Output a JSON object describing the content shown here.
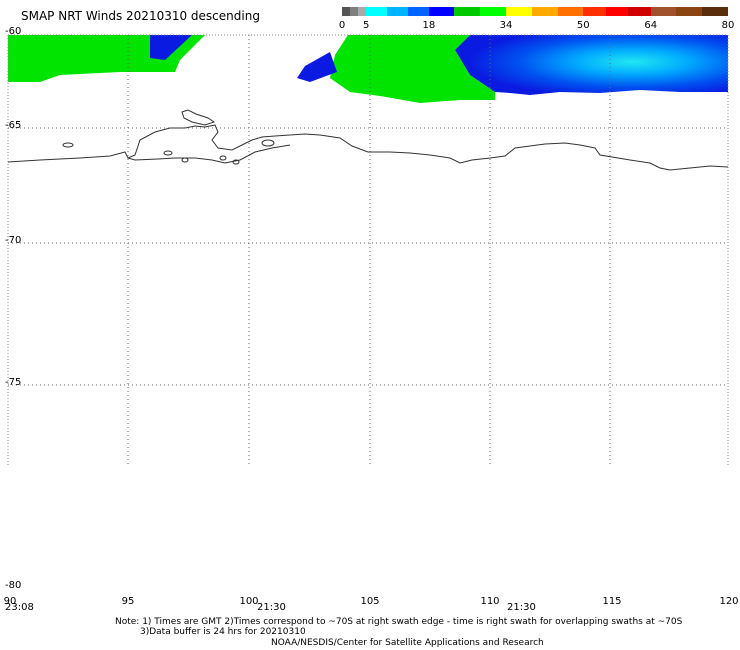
{
  "title": "SMAP NRT Winds  20210310 descending",
  "colorbar": {
    "labels": [
      "0",
      "5",
      "18",
      "34",
      "50",
      "64",
      "80"
    ],
    "colors": [
      "#555555",
      "#7f7f7f",
      "#aaaaaa",
      "#00ffff",
      "#00b4ff",
      "#0064ff",
      "#0000ff",
      "#00c800",
      "#00ff00",
      "#ffff00",
      "#ffaa00",
      "#ff7000",
      "#ff3000",
      "#ff0000",
      "#d00000",
      "#a0522d",
      "#8b4513",
      "#5a2d0c",
      "#ff00ff",
      "#cc00cc",
      "#8800cc"
    ]
  },
  "axes": {
    "lat_labels": [
      "-60",
      "-65",
      "-70",
      "-75",
      "-80"
    ],
    "lon_labels": [
      "90",
      "95",
      "100",
      "105",
      "110",
      "115",
      "120"
    ],
    "time_labels": [
      "23:08",
      "21:30",
      "21:30"
    ]
  },
  "notes": {
    "line1": "Note: 1) Times are GMT 2)Times correspond to ~70S at right swath edge - time is right swath for overlapping swaths at ~70S",
    "line2": "3)Data buffer is 24 hrs for 20210310",
    "line3": "NOAA/NESDIS/Center for Satellite Applications and Research"
  }
}
